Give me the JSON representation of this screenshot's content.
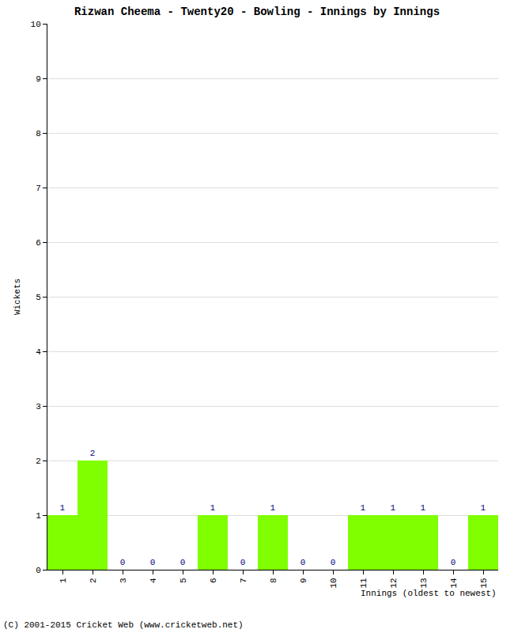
{
  "chart_data": {
    "type": "bar",
    "title": "Rizwan Cheema - Twenty20 - Bowling - Innings by Innings",
    "x_label": "Innings (oldest to newest)",
    "y_label": "Wickets",
    "annotations": [
      "(C) 2001-2015 Cricket Web (www.cricketweb.net)"
    ],
    "categories": [
      "1",
      "2",
      "3",
      "4",
      "5",
      "6",
      "7",
      "8",
      "9",
      "10",
      "11",
      "12",
      "13",
      "14",
      "15"
    ],
    "values": [
      1,
      2,
      0,
      0,
      0,
      1,
      0,
      1,
      0,
      0,
      1,
      1,
      1,
      0,
      1
    ],
    "color": "#7fff00",
    "ylim": [
      0,
      10
    ],
    "yticks": [
      0,
      1,
      2,
      3,
      4,
      5,
      6,
      7,
      8,
      9,
      10
    ],
    "grid": true,
    "data_labels": true
  }
}
